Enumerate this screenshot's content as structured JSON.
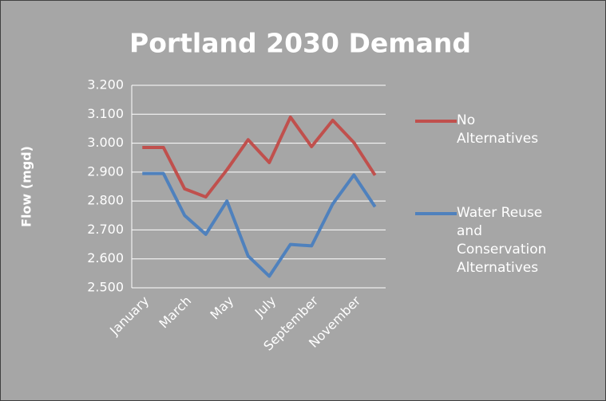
{
  "chart_data": {
    "type": "line",
    "title": "Portland 2030 Demand",
    "y_label": "Flow (mgd)",
    "categories": [
      "January",
      null,
      "March",
      null,
      "May",
      null,
      "July",
      null,
      "September",
      null,
      "November",
      null
    ],
    "series": [
      {
        "name": "No Alternatives",
        "color": "#c0504d",
        "values": [
          2.985,
          2.985,
          2.842,
          2.814,
          2.908,
          3.012,
          2.933,
          3.09,
          2.988,
          3.079,
          3.002,
          2.889
        ]
      },
      {
        "name": "Water Reuse and Conservation Alternatives",
        "color": "#4f81bd",
        "values": [
          2.895,
          2.895,
          2.75,
          2.685,
          2.8,
          2.61,
          2.54,
          2.65,
          2.645,
          2.79,
          2.89,
          2.78
        ]
      }
    ],
    "ylim": [
      2.5,
      3.2
    ],
    "yticks": [
      {
        "value": 2.5,
        "label": "2.500"
      },
      {
        "value": 2.6,
        "label": "2.600"
      },
      {
        "value": 2.7,
        "label": "2.700"
      },
      {
        "value": 2.8,
        "label": "2.800"
      },
      {
        "value": 2.9,
        "label": "2.900"
      },
      {
        "value": 3.0,
        "label": "3.000"
      },
      {
        "value": 3.1,
        "label": "3.100"
      },
      {
        "value": 3.2,
        "label": "3.200"
      }
    ],
    "grid": true,
    "legend": "right"
  }
}
